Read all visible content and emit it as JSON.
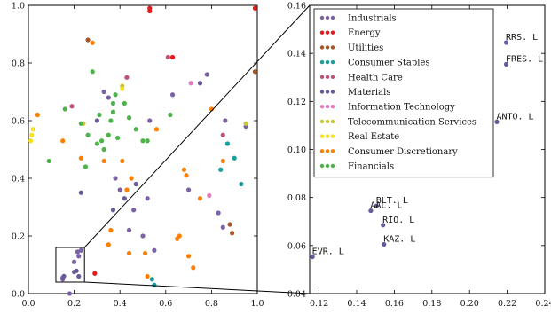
{
  "chart_data": [
    {
      "type": "scatter",
      "panel": "overview",
      "xlim": [
        0.0,
        1.0
      ],
      "ylim": [
        0.0,
        1.0
      ],
      "x_ticks": [
        "0.0",
        "0.2",
        "0.4",
        "0.6",
        "0.8",
        "1.0"
      ],
      "y_ticks": [
        "0.0",
        "0.2",
        "0.4",
        "0.6",
        "0.8",
        "1.0"
      ],
      "grid": false,
      "zoom_box": {
        "x": [
          0.12,
          0.245
        ],
        "y": [
          0.04,
          0.16
        ]
      },
      "series": [
        {
          "name": "Industrials",
          "color": "#7b62a5",
          "points": [
            [
              0.15,
              0.05
            ],
            [
              0.2,
              0.11
            ],
            [
              0.22,
              0.13
            ],
            [
              0.215,
              0.145
            ],
            [
              0.23,
              0.15
            ],
            [
              0.18,
              0.0
            ],
            [
              0.33,
              0.7
            ],
            [
              0.35,
              0.68
            ],
            [
              0.38,
              0.4
            ],
            [
              0.46,
              0.29
            ],
            [
              0.5,
              0.2
            ],
            [
              0.53,
              0.6
            ],
            [
              0.55,
              0.15
            ],
            [
              0.63,
              0.69
            ],
            [
              0.7,
              0.36
            ],
            [
              0.78,
              0.76
            ],
            [
              0.83,
              0.28
            ],
            [
              0.85,
              0.23
            ],
            [
              0.86,
              0.6
            ],
            [
              0.52,
              0.33
            ],
            [
              0.4,
              0.36
            ],
            [
              0.44,
              0.22
            ],
            [
              0.95,
              0.58
            ]
          ]
        },
        {
          "name": "Energy",
          "color": "#e41a1c",
          "points": [
            [
              0.53,
              0.99
            ],
            [
              0.53,
              0.98
            ],
            [
              0.63,
              0.82
            ],
            [
              0.29,
              0.07
            ],
            [
              0.99,
              0.99
            ]
          ]
        },
        {
          "name": "Utilities",
          "color": "#a65628",
          "points": [
            [
              0.26,
              0.88
            ],
            [
              0.88,
              0.24
            ],
            [
              0.89,
              0.21
            ],
            [
              0.99,
              0.77
            ]
          ]
        },
        {
          "name": "Consumer Staples",
          "color": "#1b9e9e",
          "points": [
            [
              0.54,
              0.05
            ],
            [
              0.55,
              0.03
            ],
            [
              0.84,
              0.43
            ],
            [
              0.87,
              0.52
            ],
            [
              0.9,
              0.47
            ],
            [
              0.93,
              0.38
            ]
          ]
        },
        {
          "name": "Health Care",
          "color": "#c0507a",
          "points": [
            [
              0.19,
              0.65
            ],
            [
              0.43,
              0.75
            ],
            [
              0.61,
              0.82
            ],
            [
              0.85,
              0.55
            ]
          ]
        },
        {
          "name": "Materials",
          "color": "#6a5a9a",
          "points": [
            [
              0.15,
              0.0553
            ],
            [
              0.155,
              0.0605
            ],
            [
              0.2,
              0.075
            ],
            [
              0.21,
              0.079
            ],
            [
              0.22,
              0.06
            ],
            [
              0.3,
              0.6
            ],
            [
              0.75,
              0.73
            ],
            [
              0.23,
              0.35
            ],
            [
              0.37,
              0.29
            ],
            [
              0.42,
              0.33
            ],
            [
              0.47,
              0.38
            ]
          ]
        },
        {
          "name": "Information Technology",
          "color": "#e778c2",
          "points": [
            [
              0.71,
              0.73
            ],
            [
              0.79,
              0.34
            ]
          ]
        },
        {
          "name": "Telecommunication Services",
          "color": "#c8c832",
          "points": [
            [
              0.24,
              0.59
            ],
            [
              0.41,
              0.72
            ],
            [
              0.95,
              0.59
            ]
          ]
        },
        {
          "name": "Real Estate",
          "color": "#f5e11e",
          "points": [
            [
              0.01,
              0.53
            ],
            [
              0.015,
              0.55
            ],
            [
              0.02,
              0.57
            ],
            [
              0.41,
              0.71
            ]
          ]
        },
        {
          "name": "Consumer Discretionary",
          "color": "#ff7f00",
          "points": [
            [
              0.04,
              0.62
            ],
            [
              0.15,
              0.53
            ],
            [
              0.23,
              0.47
            ],
            [
              0.28,
              0.87
            ],
            [
              0.33,
              0.46
            ],
            [
              0.35,
              0.17
            ],
            [
              0.36,
              0.22
            ],
            [
              0.41,
              0.46
            ],
            [
              0.43,
              0.36
            ],
            [
              0.44,
              0.14
            ],
            [
              0.51,
              0.14
            ],
            [
              0.56,
              0.57
            ],
            [
              0.65,
              0.19
            ],
            [
              0.66,
              0.2
            ],
            [
              0.68,
              0.43
            ],
            [
              0.69,
              0.41
            ],
            [
              0.7,
              0.13
            ],
            [
              0.72,
              0.09
            ],
            [
              0.75,
              0.33
            ],
            [
              0.8,
              0.64
            ],
            [
              0.85,
              0.46
            ],
            [
              0.45,
              0.4
            ],
            [
              0.52,
              0.06
            ]
          ]
        },
        {
          "name": "Financials",
          "color": "#4db34a",
          "points": [
            [
              0.09,
              0.46
            ],
            [
              0.16,
              0.64
            ],
            [
              0.23,
              0.59
            ],
            [
              0.25,
              0.44
            ],
            [
              0.26,
              0.55
            ],
            [
              0.28,
              0.77
            ],
            [
              0.3,
              0.52
            ],
            [
              0.31,
              0.62
            ],
            [
              0.32,
              0.53
            ],
            [
              0.33,
              0.5
            ],
            [
              0.35,
              0.55
            ],
            [
              0.36,
              0.6
            ],
            [
              0.37,
              0.63
            ],
            [
              0.38,
              0.69
            ],
            [
              0.37,
              0.66
            ],
            [
              0.39,
              0.54
            ],
            [
              0.42,
              0.66
            ],
            [
              0.44,
              0.61
            ],
            [
              0.5,
              0.53
            ],
            [
              0.52,
              0.53
            ],
            [
              0.47,
              0.57
            ],
            [
              0.62,
              0.62
            ]
          ]
        }
      ]
    },
    {
      "type": "scatter",
      "panel": "zoom",
      "xlim": [
        0.115,
        0.24
      ],
      "ylim": [
        0.04,
        0.16
      ],
      "x_ticks": [
        "0.12",
        "0.14",
        "0.16",
        "0.18",
        "0.20",
        "0.22",
        "0.24"
      ],
      "y_ticks": [
        "0.04",
        "0.06",
        "0.08",
        "0.10",
        "0.12",
        "0.14",
        "0.16"
      ],
      "grid": false,
      "legend": {
        "placement": "top-left",
        "entries": [
          {
            "name": "Industrials",
            "color": "#7b62a5"
          },
          {
            "name": "Energy",
            "color": "#e41a1c"
          },
          {
            "name": "Utilities",
            "color": "#a65628"
          },
          {
            "name": "Consumer Staples",
            "color": "#1b9e9e"
          },
          {
            "name": "Health Care",
            "color": "#c0507a"
          },
          {
            "name": "Materials",
            "color": "#6a5a9a"
          },
          {
            "name": "Information Technology",
            "color": "#e778c2"
          },
          {
            "name": "Telecommunication Services",
            "color": "#c8c832"
          },
          {
            "name": "Real Estate",
            "color": "#f5e11e"
          },
          {
            "name": "Consumer Discretionary",
            "color": "#ff7f00"
          },
          {
            "name": "Financials",
            "color": "#4db34a"
          }
        ]
      },
      "points": [
        {
          "label": "RRS. L",
          "x": 0.2195,
          "y": 0.1445,
          "color": "#6a5a9a"
        },
        {
          "label": "FRES. L",
          "x": 0.2195,
          "y": 0.1355,
          "color": "#6a5a9a"
        },
        {
          "label": "ANTO. L",
          "x": 0.2145,
          "y": 0.1115,
          "color": "#6a5a9a"
        },
        {
          "label": "BLT. L",
          "x": 0.1505,
          "y": 0.0765,
          "color": "#6a5a9a"
        },
        {
          "label": "AAL. L",
          "x": 0.1475,
          "y": 0.0745,
          "color": "#6a5a9a"
        },
        {
          "label": "RIO. L",
          "x": 0.154,
          "y": 0.0685,
          "color": "#6a5a9a"
        },
        {
          "label": "KAZ. L",
          "x": 0.1545,
          "y": 0.0605,
          "color": "#6a5a9a"
        },
        {
          "label": "EVR. L",
          "x": 0.1165,
          "y": 0.0553,
          "color": "#6a5a9a"
        }
      ]
    }
  ]
}
